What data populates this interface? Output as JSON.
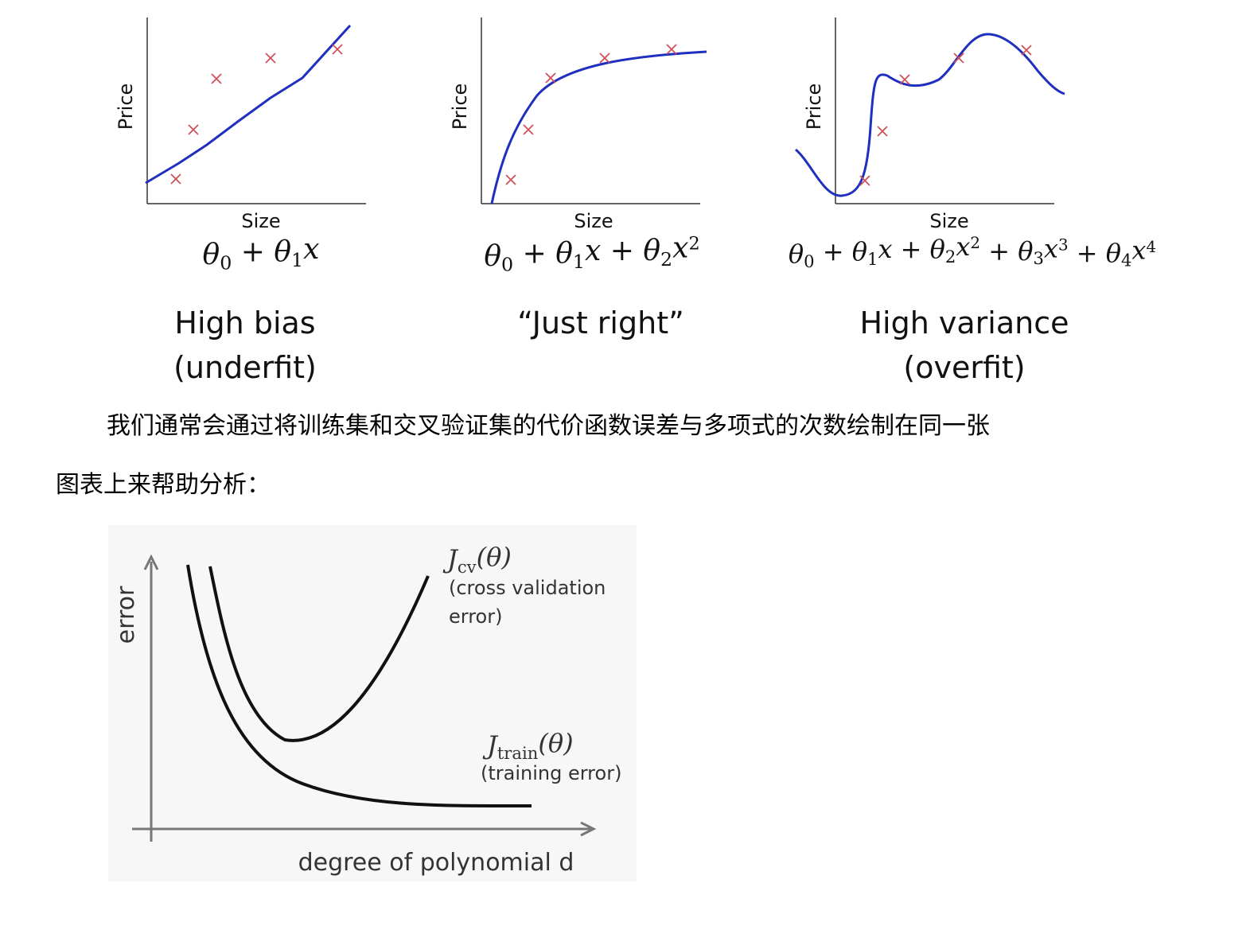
{
  "panels": [
    {
      "ylabel": "Price",
      "xlabel": "Size",
      "title_line1": "High bias",
      "title_line2": "(underfit)",
      "formula": [
        {
          "t": "θ"
        },
        {
          "t": "0",
          "sub": true
        },
        {
          "t": " + θ"
        },
        {
          "t": "1",
          "sub": true
        },
        {
          "t": "x"
        }
      ]
    },
    {
      "ylabel": "Price",
      "xlabel": "Size",
      "title_line1": "“Just right”",
      "title_line2": "",
      "formula": [
        {
          "t": "θ"
        },
        {
          "t": "0",
          "sub": true
        },
        {
          "t": " + θ"
        },
        {
          "t": "1",
          "sub": true
        },
        {
          "t": "x + θ"
        },
        {
          "t": "2",
          "sub": true
        },
        {
          "t": "x"
        },
        {
          "t": "2",
          "sup": true
        }
      ]
    },
    {
      "ylabel": "Price",
      "xlabel": "Size",
      "title_line1": "High variance",
      "title_line2": "(overfit)",
      "formula": [
        {
          "t": "θ"
        },
        {
          "t": "0",
          "sub": true
        },
        {
          "t": " + θ"
        },
        {
          "t": "1",
          "sub": true
        },
        {
          "t": "x + θ"
        },
        {
          "t": "2",
          "sub": true
        },
        {
          "t": "x"
        },
        {
          "t": "2",
          "sup": true
        },
        {
          "t": " + θ"
        },
        {
          "t": "3",
          "sub": true
        },
        {
          "t": "x"
        },
        {
          "t": "3",
          "sup": true
        },
        {
          "t": " + θ"
        },
        {
          "t": "4",
          "sub": true
        },
        {
          "t": "x"
        },
        {
          "t": "4",
          "sup": true
        }
      ]
    }
  ],
  "paragraph": {
    "line1": "我们通常会通过将训练集和交叉验证集的代价函数误差与多项式的次数绘制在同一张",
    "line2": "图表上来帮助分析："
  },
  "error_chart": {
    "ylabel": "error",
    "xlabel": "degree of polynomial d",
    "cv_label_formula": [
      {
        "t": "J"
      },
      {
        "t": "cv",
        "sub": true
      },
      {
        "t": "(θ)"
      }
    ],
    "cv_desc_line1": "(cross validation",
    "cv_desc_line2": "error)",
    "train_label_formula": [
      {
        "t": "J"
      },
      {
        "t": "train",
        "sub": true
      },
      {
        "t": "(θ)"
      }
    ],
    "train_desc": "(training error)"
  },
  "colors": {
    "fit_curve": "#1f2fbf",
    "data_marker": "#d0505a",
    "axis": "#333333",
    "error_curve": "#111111",
    "chart_bg": "#f7f7f7"
  }
}
